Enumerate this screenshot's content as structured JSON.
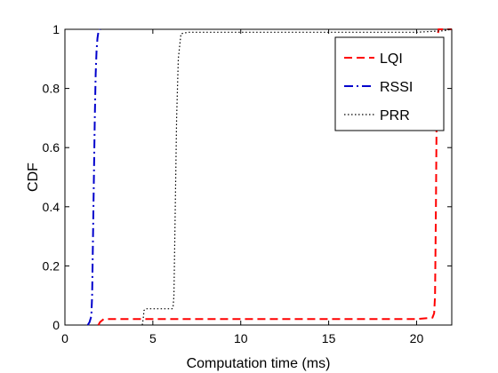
{
  "chart_data": {
    "type": "line",
    "title": "",
    "xlabel": "Computation time (ms)",
    "ylabel": "CDF",
    "xlim": [
      0,
      22
    ],
    "ylim": [
      0,
      1
    ],
    "xticks": [
      0,
      5,
      10,
      15,
      20
    ],
    "yticks": [
      0,
      0.2,
      0.4,
      0.6,
      0.8,
      1
    ],
    "xtick_labels": [
      "0",
      "5",
      "10",
      "15",
      "20"
    ],
    "ytick_labels": [
      "0",
      "0.2",
      "0.4",
      "0.6",
      "0.8",
      "1"
    ],
    "grid": false,
    "legend_position": "top-right",
    "series": [
      {
        "name": "LQI",
        "color": "#ff0000",
        "dash": "dashed",
        "x": [
          1.9,
          2.0,
          2.2,
          5.0,
          10.0,
          15.0,
          20.0,
          20.9,
          21.0,
          21.05,
          21.1,
          21.15,
          21.2,
          21.25,
          22.0
        ],
        "y": [
          0.0,
          0.01,
          0.02,
          0.02,
          0.02,
          0.02,
          0.02,
          0.025,
          0.04,
          0.1,
          0.4,
          0.8,
          0.98,
          1.0,
          1.0
        ]
      },
      {
        "name": "RSSI",
        "color": "#0000cc",
        "dash": "dashdot",
        "x": [
          1.3,
          1.4,
          1.5,
          1.55,
          1.6,
          1.65,
          1.7,
          1.75,
          1.8,
          1.85,
          1.9,
          2.0
        ],
        "y": [
          0.0,
          0.01,
          0.03,
          0.1,
          0.3,
          0.5,
          0.7,
          0.85,
          0.93,
          0.97,
          0.99,
          1.0
        ]
      },
      {
        "name": "PRR",
        "color": "#000000",
        "dash": "dotted",
        "x": [
          4.4,
          4.45,
          4.5,
          4.6,
          6.1,
          6.15,
          6.2,
          6.25,
          6.3,
          6.35,
          6.45,
          6.6,
          7.0,
          10.0,
          15.0,
          20.0,
          21.5,
          22.0
        ],
        "y": [
          0.0,
          0.02,
          0.05,
          0.055,
          0.055,
          0.06,
          0.1,
          0.3,
          0.5,
          0.7,
          0.9,
          0.985,
          0.99,
          0.99,
          0.99,
          0.99,
          0.995,
          1.0
        ]
      }
    ]
  }
}
